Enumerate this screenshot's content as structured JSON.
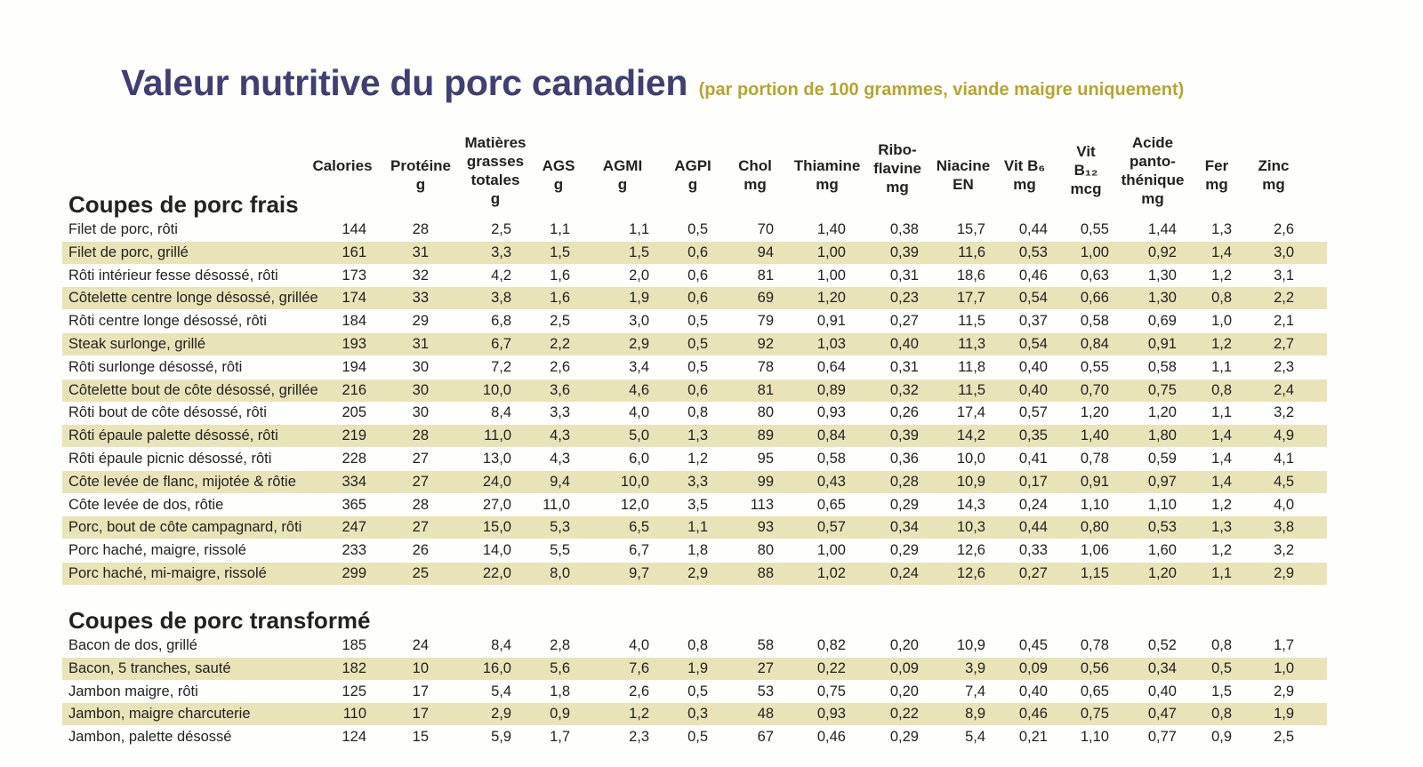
{
  "title": "Valeur nutritive du porc canadien",
  "subtitle": "(par portion de 100 grammes, viande maigre uniquement)",
  "columns": [
    "Calories",
    "Protéine\ng",
    "Matières\ngrasses\ntotales\ng",
    "AGS\ng",
    "AGMI\ng",
    "AGPI\ng",
    "Chol\nmg",
    "Thiamine\nmg",
    "Ribo-\nflavine\nmg",
    "Niacine\nEN",
    "Vit B₆\nmg",
    "Vit\nB₁₂\nmcg",
    "Acide\npanto-\nthénique\nmg",
    "Fer\nmg",
    "Zinc\nmg"
  ],
  "sections": [
    {
      "title": "Coupes de porc frais",
      "rows": [
        {
          "name": "Filet de porc, rôti",
          "values": [
            "144",
            "28",
            "2,5",
            "1,1",
            "1,1",
            "0,5",
            "70",
            "1,40",
            "0,38",
            "15,7",
            "0,44",
            "0,55",
            "1,44",
            "1,3",
            "2,6"
          ]
        },
        {
          "name": "Filet de porc, grillé",
          "values": [
            "161",
            "31",
            "3,3",
            "1,5",
            "1,5",
            "0,6",
            "94",
            "1,00",
            "0,39",
            "11,6",
            "0,53",
            "1,00",
            "0,92",
            "1,4",
            "3,0"
          ]
        },
        {
          "name": "Rôti intérieur fesse désossé, rôti",
          "values": [
            "173",
            "32",
            "4,2",
            "1,6",
            "2,0",
            "0,6",
            "81",
            "1,00",
            "0,31",
            "18,6",
            "0,46",
            "0,63",
            "1,30",
            "1,2",
            "3,1"
          ]
        },
        {
          "name": "Côtelette centre longe désossé, grillée",
          "values": [
            "174",
            "33",
            "3,8",
            "1,6",
            "1,9",
            "0,6",
            "69",
            "1,20",
            "0,23",
            "17,7",
            "0,54",
            "0,66",
            "1,30",
            "0,8",
            "2,2"
          ]
        },
        {
          "name": "Rôti centre longe désossé, rôti",
          "values": [
            "184",
            "29",
            "6,8",
            "2,5",
            "3,0",
            "0,5",
            "79",
            "0,91",
            "0,27",
            "11,5",
            "0,37",
            "0,58",
            "0,69",
            "1,0",
            "2,1"
          ]
        },
        {
          "name": "Steak surlonge, grillé",
          "values": [
            "193",
            "31",
            "6,7",
            "2,2",
            "2,9",
            "0,5",
            "92",
            "1,03",
            "0,40",
            "11,3",
            "0,54",
            "0,84",
            "0,91",
            "1,2",
            "2,7"
          ]
        },
        {
          "name": "Rôti surlonge désossé, rôti",
          "values": [
            "194",
            "30",
            "7,2",
            "2,6",
            "3,4",
            "0,5",
            "78",
            "0,64",
            "0,31",
            "11,8",
            "0,40",
            "0,55",
            "0,58",
            "1,1",
            "2,3"
          ]
        },
        {
          "name": "Côtelette bout de côte désossé, grillée",
          "values": [
            "216",
            "30",
            "10,0",
            "3,6",
            "4,6",
            "0,6",
            "81",
            "0,89",
            "0,32",
            "11,5",
            "0,40",
            "0,70",
            "0,75",
            "0,8",
            "2,4"
          ]
        },
        {
          "name": "Rôti bout de côte désossé, rôti",
          "values": [
            "205",
            "30",
            "8,4",
            "3,3",
            "4,0",
            "0,8",
            "80",
            "0,93",
            "0,26",
            "17,4",
            "0,57",
            "1,20",
            "1,20",
            "1,1",
            "3,2"
          ]
        },
        {
          "name": "Rôti épaule palette désossé, rôti",
          "values": [
            "219",
            "28",
            "11,0",
            "4,3",
            "5,0",
            "1,3",
            "89",
            "0,84",
            "0,39",
            "14,2",
            "0,35",
            "1,40",
            "1,80",
            "1,4",
            "4,9"
          ]
        },
        {
          "name": "Rôti épaule picnic désossé, rôti",
          "values": [
            "228",
            "27",
            "13,0",
            "4,3",
            "6,0",
            "1,2",
            "95",
            "0,58",
            "0,36",
            "10,0",
            "0,41",
            "0,78",
            "0,59",
            "1,4",
            "4,1"
          ]
        },
        {
          "name": "Côte levée de flanc, mijotée & rôtie",
          "values": [
            "334",
            "27",
            "24,0",
            "9,4",
            "10,0",
            "3,3",
            "99",
            "0,43",
            "0,28",
            "10,9",
            "0,17",
            "0,91",
            "0,97",
            "1,4",
            "4,5"
          ]
        },
        {
          "name": "Côte levée de dos, rôtie",
          "values": [
            "365",
            "28",
            "27,0",
            "11,0",
            "12,0",
            "3,5",
            "113",
            "0,65",
            "0,29",
            "14,3",
            "0,24",
            "1,10",
            "1,10",
            "1,2",
            "4,0"
          ]
        },
        {
          "name": "Porc, bout de côte campagnard, rôti",
          "values": [
            "247",
            "27",
            "15,0",
            "5,3",
            "6,5",
            "1,1",
            "93",
            "0,57",
            "0,34",
            "10,3",
            "0,44",
            "0,80",
            "0,53",
            "1,3",
            "3,8"
          ]
        },
        {
          "name": "Porc haché, maigre, rissolé",
          "values": [
            "233",
            "26",
            "14,0",
            "5,5",
            "6,7",
            "1,8",
            "80",
            "1,00",
            "0,29",
            "12,6",
            "0,33",
            "1,06",
            "1,60",
            "1,2",
            "3,2"
          ]
        },
        {
          "name": "Porc haché, mi-maigre, rissolé",
          "values": [
            "299",
            "25",
            "22,0",
            "8,0",
            "9,7",
            "2,9",
            "88",
            "1,02",
            "0,24",
            "12,6",
            "0,27",
            "1,15",
            "1,20",
            "1,1",
            "2,9"
          ]
        }
      ]
    },
    {
      "title": "Coupes de porc transformé",
      "rows": [
        {
          "name": "Bacon de dos, grillé",
          "values": [
            "185",
            "24",
            "8,4",
            "2,8",
            "4,0",
            "0,8",
            "58",
            "0,82",
            "0,20",
            "10,9",
            "0,45",
            "0,78",
            "0,52",
            "0,8",
            "1,7"
          ]
        },
        {
          "name": "Bacon, 5 tranches, sauté",
          "values": [
            "182",
            "10",
            "16,0",
            "5,6",
            "7,6",
            "1,9",
            "27",
            "0,22",
            "0,09",
            "3,9",
            "0,09",
            "0,56",
            "0,34",
            "0,5",
            "1,0"
          ]
        },
        {
          "name": "Jambon maigre, rôti",
          "values": [
            "125",
            "17",
            "5,4",
            "1,8",
            "2,6",
            "0,5",
            "53",
            "0,75",
            "0,20",
            "7,4",
            "0,40",
            "0,65",
            "0,40",
            "1,5",
            "2,9"
          ]
        },
        {
          "name": "Jambon, maigre charcuterie",
          "values": [
            "110",
            "17",
            "2,9",
            "0,9",
            "1,2",
            "0,3",
            "48",
            "0,93",
            "0,22",
            "8,9",
            "0,46",
            "0,75",
            "0,47",
            "0,8",
            "1,9"
          ]
        },
        {
          "name": "Jambon, palette désossé",
          "values": [
            "124",
            "15",
            "5,9",
            "1,7",
            "2,3",
            "0,5",
            "67",
            "0,46",
            "0,29",
            "5,4",
            "0,21",
            "1,10",
            "0,77",
            "0,9",
            "2,5"
          ]
        }
      ]
    }
  ]
}
